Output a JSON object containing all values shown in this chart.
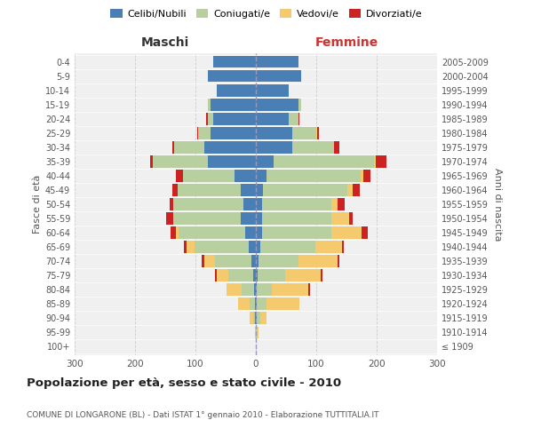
{
  "age_groups": [
    "100+",
    "95-99",
    "90-94",
    "85-89",
    "80-84",
    "75-79",
    "70-74",
    "65-69",
    "60-64",
    "55-59",
    "50-54",
    "45-49",
    "40-44",
    "35-39",
    "30-34",
    "25-29",
    "20-24",
    "15-19",
    "10-14",
    "5-9",
    "0-4"
  ],
  "birth_years": [
    "≤ 1909",
    "1910-1914",
    "1915-1919",
    "1920-1924",
    "1925-1929",
    "1930-1934",
    "1935-1939",
    "1940-1944",
    "1945-1949",
    "1950-1954",
    "1955-1959",
    "1960-1964",
    "1965-1969",
    "1970-1974",
    "1975-1979",
    "1980-1984",
    "1985-1989",
    "1990-1994",
    "1995-1999",
    "2000-2004",
    "2005-2009"
  ],
  "male": {
    "celibi": [
      0,
      0,
      2,
      2,
      3,
      5,
      8,
      12,
      18,
      25,
      20,
      25,
      35,
      80,
      85,
      75,
      70,
      75,
      65,
      80,
      70
    ],
    "coniugati": [
      0,
      0,
      3,
      8,
      20,
      40,
      60,
      90,
      110,
      110,
      115,
      105,
      85,
      90,
      50,
      20,
      10,
      5,
      0,
      0,
      0
    ],
    "vedovi": [
      0,
      1,
      5,
      20,
      25,
      20,
      18,
      12,
      5,
      2,
      2,
      0,
      0,
      0,
      0,
      0,
      0,
      0,
      0,
      0,
      0
    ],
    "divorziati": [
      0,
      0,
      0,
      0,
      0,
      2,
      3,
      5,
      8,
      12,
      5,
      8,
      12,
      5,
      3,
      2,
      2,
      0,
      0,
      0,
      0
    ]
  },
  "female": {
    "nubili": [
      0,
      0,
      2,
      2,
      2,
      3,
      5,
      8,
      10,
      10,
      10,
      12,
      18,
      30,
      60,
      60,
      55,
      70,
      55,
      75,
      70
    ],
    "coniugate": [
      0,
      2,
      5,
      15,
      25,
      45,
      65,
      90,
      115,
      115,
      115,
      140,
      155,
      165,
      70,
      40,
      15,
      5,
      0,
      0,
      0
    ],
    "vedove": [
      0,
      2,
      10,
      55,
      60,
      60,
      65,
      45,
      50,
      30,
      10,
      8,
      5,
      3,
      0,
      2,
      0,
      0,
      0,
      0,
      0
    ],
    "divorziate": [
      0,
      0,
      0,
      0,
      2,
      2,
      3,
      3,
      10,
      5,
      12,
      12,
      12,
      18,
      8,
      3,
      2,
      0,
      0,
      0,
      0
    ]
  },
  "colors": {
    "celibi": "#4a7fb5",
    "coniugati": "#b8cfa0",
    "vedovi": "#f5c96e",
    "divorziati": "#cc2222"
  },
  "xlim": 300,
  "title": "Popolazione per età, sesso e stato civile - 2010",
  "subtitle": "COMUNE DI LONGARONE (BL) - Dati ISTAT 1° gennaio 2010 - Elaborazione TUTTITALIA.IT",
  "ylabel": "Fasce di età",
  "ylabel_right": "Anni di nascita",
  "xlabel_left": "Maschi",
  "xlabel_right": "Femmine",
  "bg_color": "#f0f0f0",
  "grid_color": "#cccccc"
}
